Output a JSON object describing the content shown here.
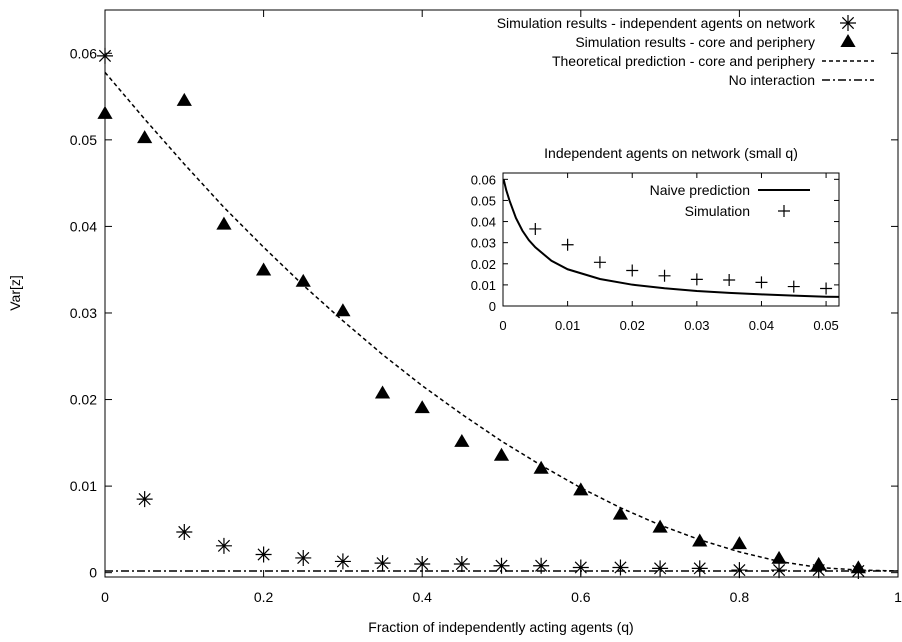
{
  "chart_data": [
    {
      "type": "scatter",
      "title": "",
      "xlabel": "Fraction of independently acting agents (q)",
      "ylabel": "Var[z]",
      "xlim": [
        0,
        1
      ],
      "ylim": [
        -0.0005,
        0.065
      ],
      "x_ticks": [
        0,
        0.2,
        0.4,
        0.6,
        0.8,
        1
      ],
      "x_tick_labels": [
        "0",
        "0.2",
        "0.4",
        "0.6",
        "0.8",
        "1"
      ],
      "y_ticks": [
        0,
        0.01,
        0.02,
        0.03,
        0.04,
        0.05,
        0.06
      ],
      "y_tick_labels": [
        "0",
        "0.01",
        "0.02",
        "0.03",
        "0.04",
        "0.05",
        "0.06"
      ],
      "grid": false,
      "legend_position": "top-right",
      "series": [
        {
          "name": "Simulation results - independent agents on network",
          "kind": "markers",
          "marker": "asterisk",
          "x": [
            0,
            0.05,
            0.1,
            0.15,
            0.2,
            0.25,
            0.3,
            0.35,
            0.4,
            0.45,
            0.5,
            0.55,
            0.6,
            0.65,
            0.7,
            0.75,
            0.8,
            0.85,
            0.9,
            0.95
          ],
          "y": [
            0.0597,
            0.0085,
            0.0047,
            0.0031,
            0.0021,
            0.0017,
            0.0013,
            0.0011,
            0.001,
            0.001,
            0.0008,
            0.0008,
            0.0006,
            0.0006,
            0.0005,
            0.0005,
            0.0003,
            0.0003,
            0.0003,
            0.0002
          ]
        },
        {
          "name": "Simulation results - core and periphery",
          "kind": "markers",
          "marker": "filled-triangle",
          "x": [
            0,
            0.05,
            0.1,
            0.15,
            0.2,
            0.25,
            0.3,
            0.35,
            0.4,
            0.45,
            0.5,
            0.55,
            0.6,
            0.65,
            0.7,
            0.75,
            0.8,
            0.85,
            0.9,
            0.95
          ],
          "y": [
            0.053,
            0.0502,
            0.0545,
            0.0402,
            0.0349,
            0.0336,
            0.0302,
            0.0207,
            0.019,
            0.0151,
            0.0135,
            0.012,
            0.0095,
            0.0067,
            0.0052,
            0.0036,
            0.0033,
            0.0016,
            0.0009,
            0.0005
          ]
        },
        {
          "name": "Theoretical prediction - core and periphery",
          "kind": "line",
          "dash": "dashed",
          "x": [
            0,
            0.05,
            0.1,
            0.15,
            0.2,
            0.25,
            0.3,
            0.35,
            0.4,
            0.45,
            0.5,
            0.55,
            0.6,
            0.65,
            0.7,
            0.75,
            0.8,
            0.85,
            0.9,
            0.95,
            1
          ],
          "y": [
            0.0578,
            0.0524,
            0.0472,
            0.0422,
            0.0376,
            0.0332,
            0.0291,
            0.0252,
            0.0216,
            0.0183,
            0.0152,
            0.0124,
            0.0098,
            0.0075,
            0.0055,
            0.0038,
            0.0024,
            0.0013,
            0.0006,
            0.0003,
            0.0002
          ]
        },
        {
          "name": "No interaction",
          "kind": "line",
          "dash": "dash-dot",
          "x": [
            0,
            1
          ],
          "y": [
            0.0002,
            0.0002
          ]
        }
      ]
    },
    {
      "type": "scatter",
      "title": "Independent agents on network (small q)",
      "xlabel": "",
      "ylabel": "",
      "xlim": [
        0,
        0.052
      ],
      "ylim": [
        0,
        0.063
      ],
      "x_ticks": [
        0,
        0.01,
        0.02,
        0.03,
        0.04,
        0.05
      ],
      "x_tick_labels": [
        "0",
        "0.01",
        "0.02",
        "0.03",
        "0.04",
        "0.05"
      ],
      "y_ticks": [
        0,
        0.01,
        0.02,
        0.03,
        0.04,
        0.05,
        0.06
      ],
      "y_tick_labels": [
        "0",
        "0.01",
        "0.02",
        "0.03",
        "0.04",
        "0.05",
        "0.06"
      ],
      "grid": false,
      "legend_position": "top-right",
      "series": [
        {
          "name": "Naive prediction",
          "kind": "line",
          "dash": "solid",
          "x": [
            0.0001,
            0.0005,
            0.001,
            0.002,
            0.003,
            0.004,
            0.005,
            0.0075,
            0.01,
            0.015,
            0.02,
            0.025,
            0.03,
            0.035,
            0.04,
            0.045,
            0.05,
            0.052
          ],
          "y": [
            0.0599,
            0.0549,
            0.05,
            0.0417,
            0.0357,
            0.0312,
            0.0278,
            0.0214,
            0.0174,
            0.0128,
            0.0101,
            0.0084,
            0.0071,
            0.0062,
            0.0055,
            0.0049,
            0.0044,
            0.0043
          ]
        },
        {
          "name": "Simulation",
          "kind": "markers",
          "marker": "plus",
          "x": [
            0.005,
            0.01,
            0.015,
            0.02,
            0.025,
            0.03,
            0.035,
            0.04,
            0.045,
            0.05
          ],
          "y": [
            0.0365,
            0.029,
            0.0207,
            0.0168,
            0.0143,
            0.0126,
            0.0123,
            0.0112,
            0.0092,
            0.0083
          ]
        }
      ]
    }
  ]
}
